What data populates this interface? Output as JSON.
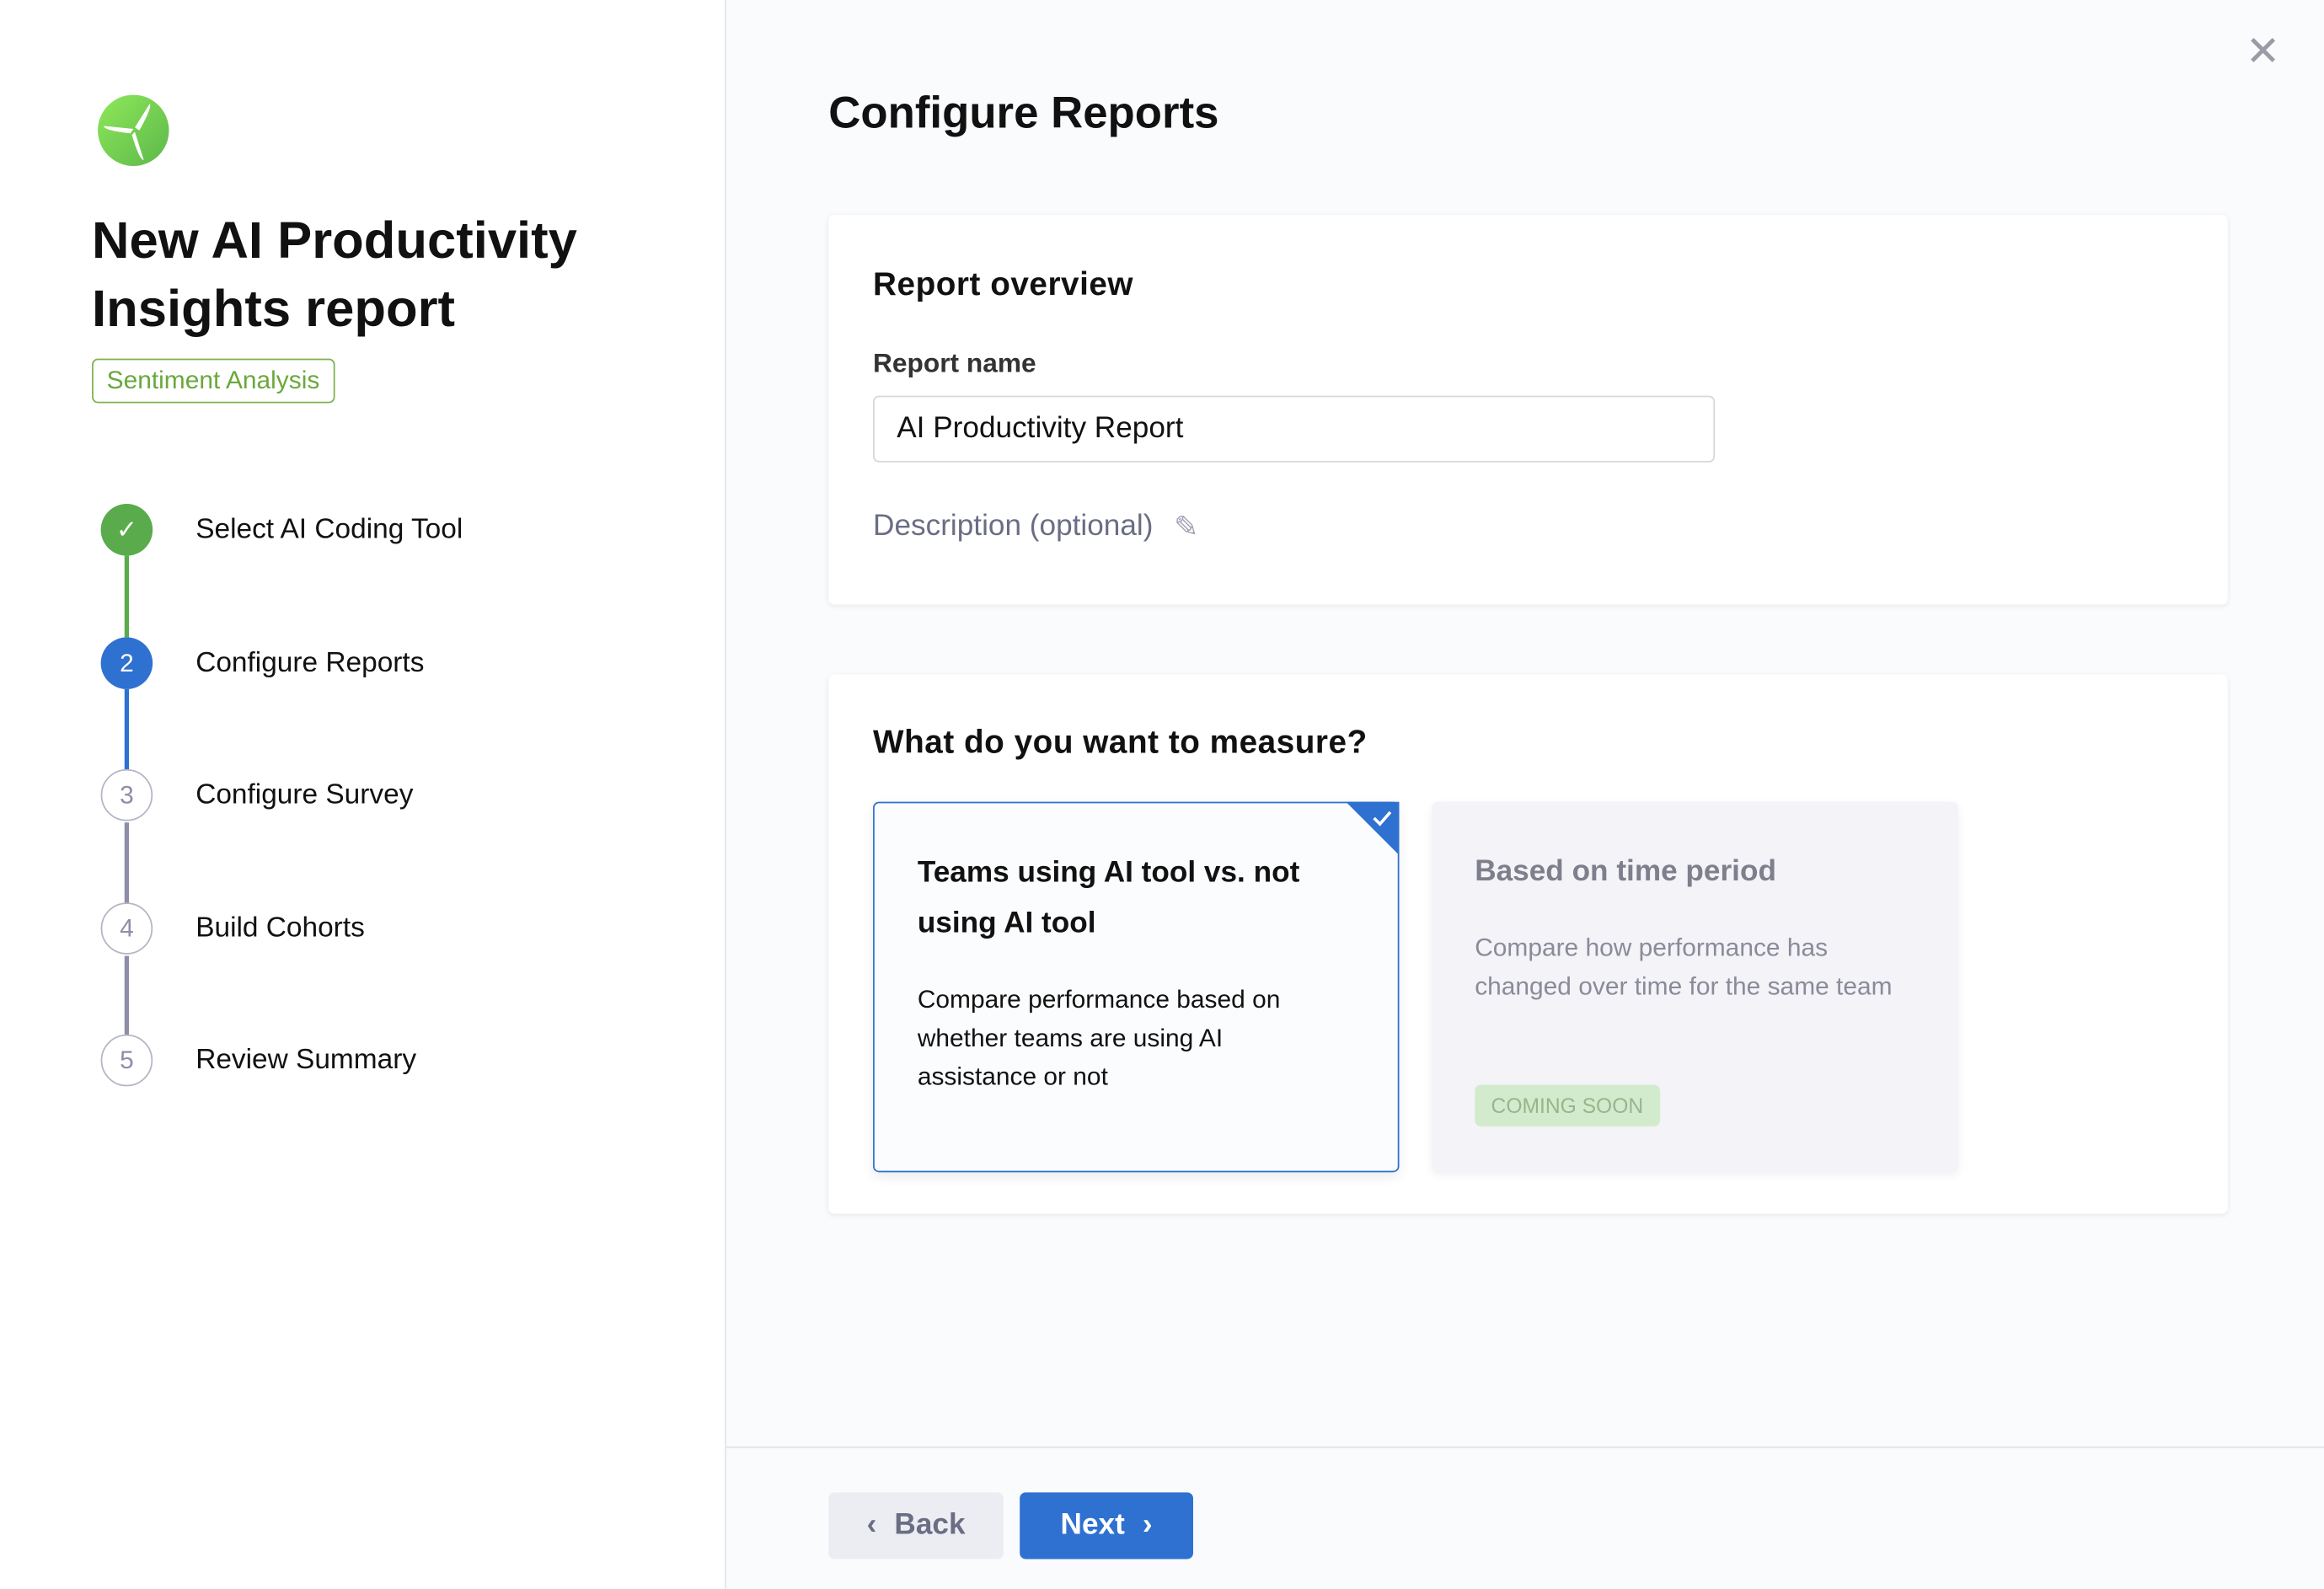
{
  "sidebar": {
    "title": "New AI Productivity Insights report",
    "tag": "Sentiment Analysis",
    "steps": [
      {
        "number": "1",
        "label": "Select AI Coding Tool",
        "state": "completed"
      },
      {
        "number": "2",
        "label": "Configure Reports",
        "state": "active"
      },
      {
        "number": "3",
        "label": "Configure Survey",
        "state": "pending"
      },
      {
        "number": "4",
        "label": "Build Cohorts",
        "state": "pending"
      },
      {
        "number": "5",
        "label": "Review Summary",
        "state": "pending"
      }
    ]
  },
  "main": {
    "title": "Configure Reports",
    "overview": {
      "heading": "Report overview",
      "name_label": "Report name",
      "name_value": "AI Productivity Report",
      "description_label": "Description (optional)"
    },
    "measure": {
      "heading": "What do you want to measure?",
      "options": [
        {
          "title": "Teams using AI tool vs. not using AI tool",
          "description": "Compare performance based on whether teams are using AI assistance or not",
          "selected": true
        },
        {
          "title": "Based on time period",
          "description": "Compare how performance has changed over time for the same team",
          "badge": "COMING SOON",
          "disabled": true
        }
      ]
    }
  },
  "footer": {
    "back_label": "Back",
    "next_label": "Next"
  },
  "colors": {
    "primary": "#2f71d0",
    "success": "#5aab4b",
    "tag": "#6aa83c"
  }
}
